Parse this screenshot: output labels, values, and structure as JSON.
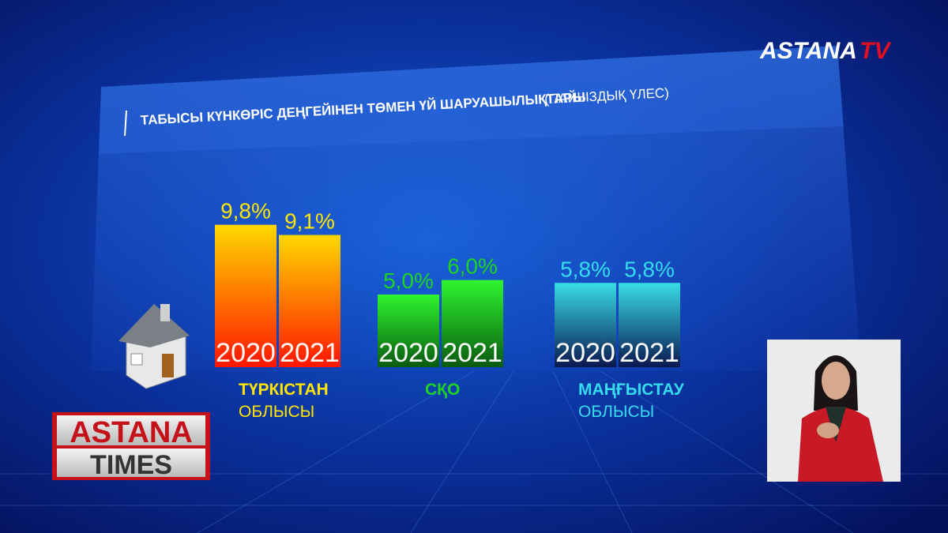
{
  "branding": {
    "channel": [
      "ASTANA",
      "TV"
    ],
    "program": [
      "ASTANA",
      "TIMES"
    ]
  },
  "chart_data": {
    "type": "grouped-bar",
    "title": "ТАБЫСЫ КҮНКӨРІС ДЕҢГЕЙІНЕН ТӨМЕН ҮЙ ШАРУАШЫЛЫҚТАРЫ",
    "subtitle": "(ПАЙЫЗДЫҚ ҮЛЕС)",
    "groups": [
      {
        "label": [
          "ТҮРКІСТАН",
          "ОБЛЫСЫ"
        ],
        "label_color": "#ffe600",
        "colors": [
          "#ffd800",
          "#ff1500"
        ],
        "years": [
          "2020",
          "2021"
        ],
        "values": [
          9.8,
          9.1
        ],
        "value_labels": [
          "9,8%",
          "9,1%"
        ]
      },
      {
        "label": [
          "СҚО"
        ],
        "label_color": "#1fd41f",
        "colors": [
          "#2ef52e",
          "#0a5a10"
        ],
        "years": [
          "2020",
          "2021"
        ],
        "values": [
          5.0,
          6.0
        ],
        "value_labels": [
          "5,0%",
          "6,0%"
        ]
      },
      {
        "label": [
          "МАҢҒЫСТАУ",
          "ОБЛЫСЫ"
        ],
        "label_color": "#35dcef",
        "colors": [
          "#38dde6",
          "#0a1850"
        ],
        "years": [
          "2020",
          "2021"
        ],
        "values": [
          5.8,
          5.8
        ],
        "value_labels": [
          "5,8%",
          "5,8%"
        ]
      }
    ]
  }
}
